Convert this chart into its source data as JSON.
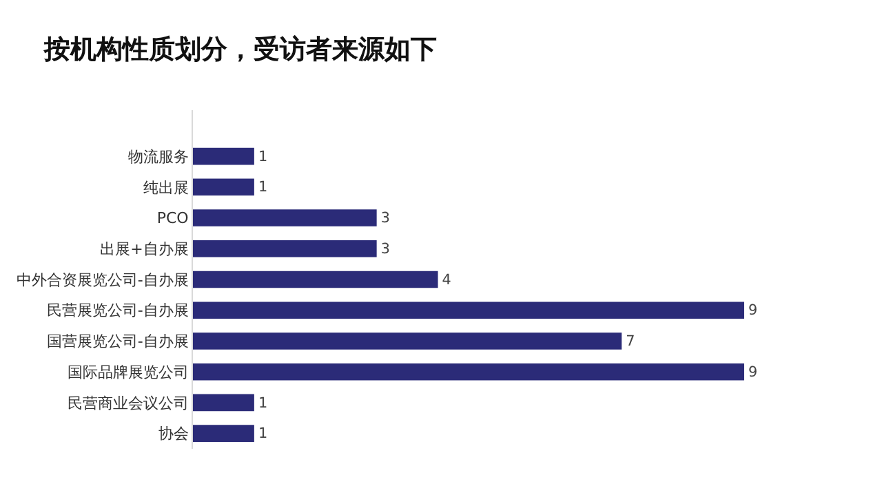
{
  "chart_data": {
    "type": "bar",
    "orientation": "horizontal",
    "title": "按机构性质划分，受访者来源如下",
    "categories": [
      "物流服务",
      "纯出展",
      "PCO",
      "出展+自办展",
      "中外合资展览公司-自办展",
      "民营展览公司-自办展",
      "国营展览公司-自办展",
      "国际品牌展览公司",
      "民营商业会议公司",
      "协会"
    ],
    "values": [
      1,
      1,
      3,
      3,
      4,
      9,
      7,
      9,
      1,
      1
    ],
    "color": "#2b2b78",
    "data_labels": true
  }
}
